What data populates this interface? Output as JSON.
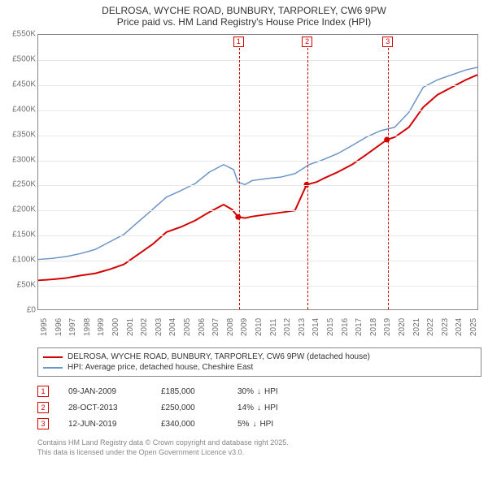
{
  "title": {
    "line1": "DELROSA, WYCHE ROAD, BUNBURY, TARPORLEY, CW6 9PW",
    "line2": "Price paid vs. HM Land Registry's House Price Index (HPI)",
    "fontsize": 12,
    "color": "#333333"
  },
  "chart": {
    "type": "line",
    "background_color": "#ffffff",
    "border_color": "#888888",
    "grid_color": "#e8e8e8",
    "axis_label_color": "#707070",
    "axis_label_fontsize": 10,
    "y": {
      "min": 0,
      "max": 550000,
      "step": 50000,
      "labels": [
        "£0",
        "£50K",
        "£100K",
        "£150K",
        "£200K",
        "£250K",
        "£300K",
        "£350K",
        "£400K",
        "£450K",
        "£500K",
        "£550K"
      ]
    },
    "x": {
      "min": 1995,
      "max": 2025.8,
      "ticks": [
        1995,
        1996,
        1997,
        1998,
        1999,
        2000,
        2001,
        2002,
        2003,
        2004,
        2005,
        2006,
        2007,
        2008,
        2009,
        2010,
        2011,
        2012,
        2013,
        2014,
        2015,
        2016,
        2017,
        2018,
        2019,
        2020,
        2021,
        2022,
        2023,
        2024,
        2025
      ]
    },
    "series": [
      {
        "id": "price_paid",
        "label": "DELROSA, WYCHE ROAD, BUNBURY, TARPORLEY, CW6 9PW (detached house)",
        "color": "#d40000",
        "width": 2,
        "points": [
          [
            1995,
            58000
          ],
          [
            1996,
            60000
          ],
          [
            1997,
            63000
          ],
          [
            1998,
            68000
          ],
          [
            1999,
            72000
          ],
          [
            2000,
            80000
          ],
          [
            2001,
            90000
          ],
          [
            2002,
            110000
          ],
          [
            2003,
            130000
          ],
          [
            2004,
            155000
          ],
          [
            2005,
            165000
          ],
          [
            2006,
            178000
          ],
          [
            2007,
            195000
          ],
          [
            2008,
            210000
          ],
          [
            2008.6,
            200000
          ],
          [
            2009.02,
            185000
          ],
          [
            2009.5,
            183000
          ],
          [
            2010,
            186000
          ],
          [
            2011,
            190000
          ],
          [
            2012,
            194000
          ],
          [
            2013,
            198000
          ],
          [
            2013.82,
            250000
          ],
          [
            2014.5,
            255000
          ],
          [
            2015,
            262000
          ],
          [
            2016,
            275000
          ],
          [
            2017,
            290000
          ],
          [
            2018,
            310000
          ],
          [
            2019.45,
            340000
          ],
          [
            2020,
            345000
          ],
          [
            2021,
            365000
          ],
          [
            2022,
            405000
          ],
          [
            2023,
            430000
          ],
          [
            2024,
            445000
          ],
          [
            2025,
            460000
          ],
          [
            2025.8,
            470000
          ]
        ]
      },
      {
        "id": "hpi",
        "label": "HPI: Average price, detached house, Cheshire East",
        "color": "#6b94c7",
        "width": 1.5,
        "points": [
          [
            1995,
            100000
          ],
          [
            1996,
            102000
          ],
          [
            1997,
            106000
          ],
          [
            1998,
            112000
          ],
          [
            1999,
            120000
          ],
          [
            2000,
            135000
          ],
          [
            2001,
            150000
          ],
          [
            2002,
            175000
          ],
          [
            2003,
            200000
          ],
          [
            2004,
            225000
          ],
          [
            2005,
            238000
          ],
          [
            2006,
            252000
          ],
          [
            2007,
            275000
          ],
          [
            2008,
            290000
          ],
          [
            2008.7,
            280000
          ],
          [
            2009,
            255000
          ],
          [
            2009.5,
            250000
          ],
          [
            2010,
            258000
          ],
          [
            2011,
            262000
          ],
          [
            2012,
            265000
          ],
          [
            2013,
            272000
          ],
          [
            2014,
            290000
          ],
          [
            2015,
            300000
          ],
          [
            2016,
            312000
          ],
          [
            2017,
            328000
          ],
          [
            2018,
            345000
          ],
          [
            2019,
            358000
          ],
          [
            2020,
            365000
          ],
          [
            2021,
            395000
          ],
          [
            2022,
            445000
          ],
          [
            2023,
            460000
          ],
          [
            2024,
            470000
          ],
          [
            2025,
            480000
          ],
          [
            2025.8,
            485000
          ]
        ]
      }
    ],
    "markers": [
      {
        "n": "1",
        "year": 2009.02,
        "color": "#d40000"
      },
      {
        "n": "2",
        "year": 2013.82,
        "color": "#d40000"
      },
      {
        "n": "3",
        "year": 2019.45,
        "color": "#d40000"
      }
    ]
  },
  "legend": {
    "border_color": "#888888",
    "fontsize": 10,
    "items": [
      {
        "color": "#d40000",
        "label": "DELROSA, WYCHE ROAD, BUNBURY, TARPORLEY, CW6 9PW (detached house)"
      },
      {
        "color": "#6b94c7",
        "label": "HPI: Average price, detached house, Cheshire East"
      }
    ]
  },
  "marker_table": {
    "fontsize": 10,
    "rows": [
      {
        "n": "1",
        "color": "#d40000",
        "date": "09-JAN-2009",
        "price": "£185,000",
        "delta": "30%",
        "dir": "down",
        "suffix": "HPI"
      },
      {
        "n": "2",
        "color": "#d40000",
        "date": "28-OCT-2013",
        "price": "£250,000",
        "delta": "14%",
        "dir": "down",
        "suffix": "HPI"
      },
      {
        "n": "3",
        "color": "#d40000",
        "date": "12-JUN-2019",
        "price": "£340,000",
        "delta": "5%",
        "dir": "down",
        "suffix": "HPI"
      }
    ]
  },
  "footer": {
    "line1": "Contains HM Land Registry data © Crown copyright and database right 2025.",
    "line2": "This data is licensed under the Open Government Licence v3.0.",
    "color": "#888888",
    "fontsize": 9
  }
}
